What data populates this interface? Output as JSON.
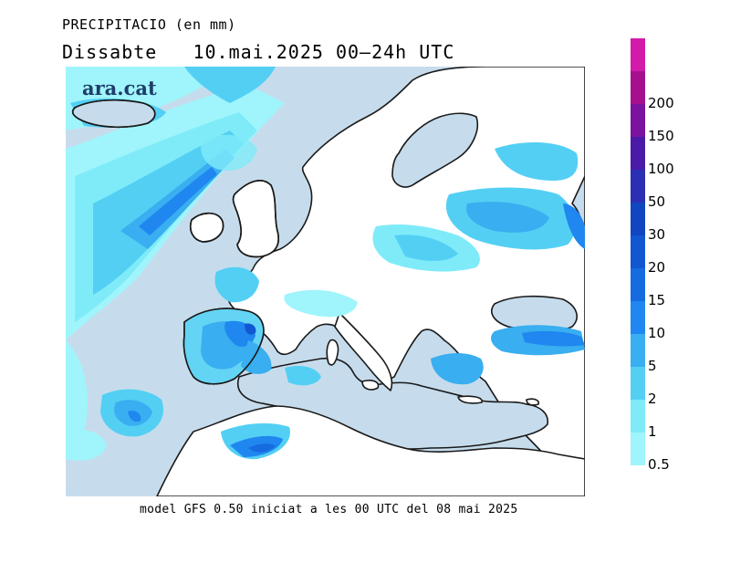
{
  "header": {
    "title": "PRECIPITACIO (en mm)",
    "subtitle": "Dissabte   10.mai.2025 00‒24h UTC"
  },
  "logo": {
    "text": "ara.cat"
  },
  "footer": {
    "text": "model GFS 0.50 iniciat a les 00 UTC del 08 mai 2025"
  },
  "legend": {
    "levels": [
      {
        "label": "0.5",
        "color": "#9ff5fb"
      },
      {
        "label": "1",
        "color": "#7febf9"
      },
      {
        "label": "2",
        "color": "#53cff4"
      },
      {
        "label": "5",
        "color": "#39aef0"
      },
      {
        "label": "10",
        "color": "#1f87ef"
      },
      {
        "label": "15",
        "color": "#166be0"
      },
      {
        "label": "20",
        "color": "#1257d2"
      },
      {
        "label": "30",
        "color": "#1046c0"
      },
      {
        "label": "50",
        "color": "#2b2fb4"
      },
      {
        "label": "100",
        "color": "#4b1ba8"
      },
      {
        "label": "150",
        "color": "#7b139e"
      },
      {
        "label": "200",
        "color": "#a6108f"
      },
      {
        "label": "",
        "color": "#d21ba8"
      }
    ]
  },
  "colors": {
    "sea": "#c6dcec",
    "land": "#ffffff",
    "coast": "#1a1a1a"
  }
}
